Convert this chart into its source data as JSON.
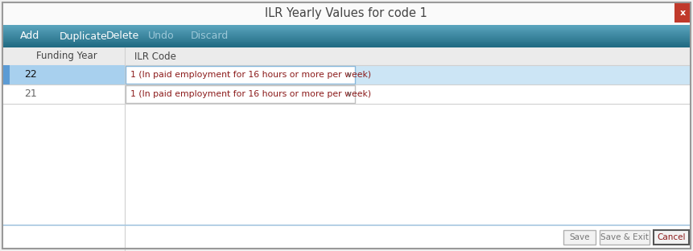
{
  "title": "ILR Yearly Values for code 1",
  "title_color": "#444444",
  "bg_color": "#f0f0f0",
  "dialog_bg": "#ffffff",
  "toolbar_color_top": "#5ba4be",
  "toolbar_color_bottom": "#1e6880",
  "toolbar_items": [
    "Add",
    "Duplicate",
    "Delete",
    "Undo",
    "Discard"
  ],
  "toolbar_text_color": "#ffffff",
  "toolbar_disabled_color": "#9cc8d8",
  "header_bg": "#ebebeb",
  "header_text": [
    "Funding Year",
    "ILR Code"
  ],
  "row1_year": "22",
  "row1_ilr": "1 (In paid employment for 16 hours or more per week)",
  "row1_selected": true,
  "row1_year_bg": "#a8d0ee",
  "row1_row_bg": "#cce5f5",
  "row1_sel_border": "#6aaad4",
  "row2_year": "21",
  "row2_ilr": "1 (In paid employment for 16 hours or more per week)",
  "row_text_color": "#8b1a1a",
  "row2_text_color": "#666666",
  "grid_line_color": "#d0d0d0",
  "close_btn_color": "#c0392b",
  "close_btn_text": "x",
  "footer_line_color": "#a8c8e0",
  "btn_save": "Save",
  "btn_save_exit": "Save & Exit",
  "btn_cancel": "Cancel",
  "btn_bg": "#f0f0f0",
  "btn_border": "#a0a0a0",
  "btn_cancel_border": "#555555",
  "sel_bar_color": "#5b9bd5",
  "dropdown_char": "v",
  "ilr_box_border": "#88b8dc"
}
